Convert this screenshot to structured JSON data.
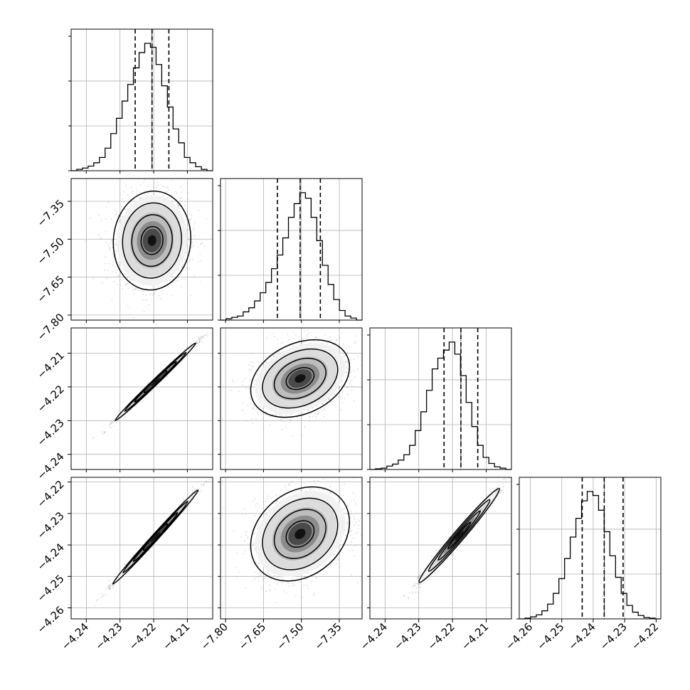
{
  "chart_data": {
    "type": "corner",
    "title": "",
    "grid": true,
    "colors": {
      "hist": "#000000",
      "points": "#9a9a9a",
      "contour": "#000000",
      "grid": "#b0b0b0"
    },
    "params": [
      {
        "range": [
          -4.2445,
          -4.2025
        ],
        "ticks": [
          -4.24,
          -4.23,
          -4.22,
          -4.21
        ],
        "tick_labels": [
          "−4.24",
          "−4.23",
          "−4.22",
          "−4.21"
        ],
        "quantiles": [
          -4.2255,
          -4.2205,
          -4.2155
        ],
        "mean": -4.2205,
        "sd": 0.005
      },
      {
        "range": [
          -7.82,
          -7.26
        ],
        "ticks": [
          -7.8,
          -7.65,
          -7.5,
          -7.35
        ],
        "tick_labels": [
          "−7.80",
          "−7.65",
          "−7.50",
          "−7.35"
        ],
        "quantiles": [
          -7.595,
          -7.505,
          -7.425
        ],
        "mean": -7.505,
        "sd": 0.085
      },
      {
        "range": [
          -4.2445,
          -4.2025
        ],
        "ticks": [
          -4.24,
          -4.23,
          -4.22,
          -4.21
        ],
        "tick_labels": [
          "−4.24",
          "−4.23",
          "−4.22",
          "−4.21"
        ],
        "quantiles": [
          -4.2225,
          -4.2175,
          -4.2125
        ],
        "mean": -4.2175,
        "sd": 0.005
      },
      {
        "range": [
          -4.2635,
          -4.2185
        ],
        "ticks": [
          -4.26,
          -4.25,
          -4.24,
          -4.23,
          -4.22
        ],
        "tick_labels": [
          "−4.26",
          "−4.25",
          "−4.24",
          "−4.23",
          "−4.22"
        ],
        "quantiles": [
          -4.2435,
          -4.2365,
          -4.2305
        ],
        "mean": -4.2365,
        "sd": 0.0065
      }
    ],
    "histograms": [
      {
        "edges": [
          -4.2445,
          -4.2025
        ],
        "counts": [
          0,
          2,
          4,
          7,
          12,
          20,
          34,
          56,
          79,
          105,
          130,
          155,
          178,
          192,
          186,
          160,
          128,
          96,
          63,
          42,
          20,
          12,
          6,
          2,
          0
        ]
      },
      {
        "edges": [
          -7.82,
          -7.26
        ],
        "counts": [
          0,
          2,
          4,
          6,
          12,
          18,
          28,
          40,
          55,
          75,
          95,
          120,
          150,
          170,
          186,
          178,
          150,
          116,
          80,
          52,
          30,
          14,
          6,
          3,
          0
        ]
      },
      {
        "edges": [
          -4.2445,
          -4.2025
        ],
        "counts": [
          0,
          1,
          2,
          5,
          8,
          14,
          22,
          36,
          58,
          86,
          118,
          150,
          166,
          178,
          190,
          172,
          140,
          100,
          64,
          36,
          18,
          9,
          4,
          2,
          0
        ]
      },
      {
        "edges": [
          -4.2635,
          -4.2185
        ],
        "counts": [
          0,
          1,
          3,
          6,
          12,
          22,
          38,
          60,
          90,
          122,
          150,
          176,
          190,
          184,
          162,
          130,
          94,
          62,
          38,
          20,
          10,
          5,
          2,
          1,
          0
        ]
      }
    ],
    "pairs": [
      {
        "x": 0,
        "y": 1,
        "center": [
          -4.2205,
          -7.505
        ],
        "correlation": 0.05,
        "spread": [
          0.005,
          0.085
        ]
      },
      {
        "x": 0,
        "y": 2,
        "center": [
          -4.2195,
          -4.2185
        ],
        "correlation": 0.995,
        "spread": [
          0.0052,
          0.005
        ]
      },
      {
        "x": 1,
        "y": 2,
        "center": [
          -7.505,
          -4.2175
        ],
        "correlation": 0.3,
        "spread": [
          0.085,
          0.005
        ]
      },
      {
        "x": 0,
        "y": 3,
        "center": [
          -4.2195,
          -4.2375
        ],
        "correlation": 0.995,
        "spread": [
          0.0055,
          0.0065
        ]
      },
      {
        "x": 1,
        "y": 3,
        "center": [
          -7.505,
          -4.2365
        ],
        "correlation": 0.25,
        "spread": [
          0.085,
          0.0065
        ]
      },
      {
        "x": 2,
        "y": 3,
        "center": [
          -4.218,
          -4.237
        ],
        "correlation": 0.985,
        "spread": [
          0.0052,
          0.0065
        ]
      }
    ]
  }
}
